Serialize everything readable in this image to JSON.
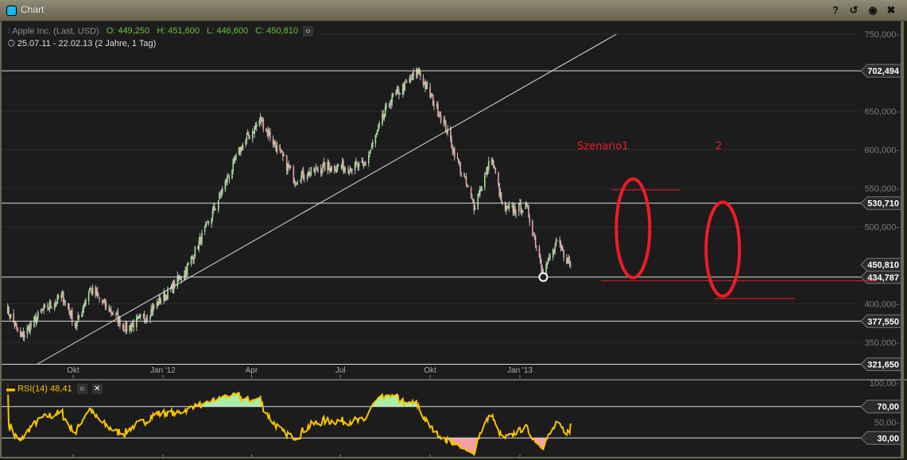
{
  "window": {
    "title": "Chart",
    "buttons": [
      "help-icon",
      "reset-icon",
      "record-icon",
      "close-icon"
    ],
    "glyphs": {
      "help": "?",
      "reset": "↺",
      "record": "◉",
      "close": "✖"
    }
  },
  "legend": {
    "instrument": "Apple Inc. (Last, USD)",
    "open": "O: 449,250",
    "high": "H: 451,600",
    "low": "L: 446,600",
    "close": "C: 450,810",
    "range": "25.07.11 - 22.02.13 (2 Jahre, 1 Tag)"
  },
  "rsi_legend": {
    "label": "RSI(14)",
    "value": "48,41"
  },
  "annotations": {
    "scenario1": "Szenario1",
    "scenario2": "2"
  },
  "colors": {
    "background": "#1c1c1c",
    "up": "#9be38a",
    "down": "#f0a0a0",
    "rsi": "#f5c400",
    "annotation": "#ee1c25",
    "overbought_fill": "#a8f0a8",
    "oversold_fill": "#f5a0a0"
  },
  "chart_data": [
    {
      "type": "candlestick",
      "xlabel": "",
      "ylabel": "",
      "x_ticks": [
        {
          "date": "2011-10-01",
          "label": "Okt"
        },
        {
          "date": "2012-01-01",
          "label": "Jan '12"
        },
        {
          "date": "2012-04-01",
          "label": "Apr"
        },
        {
          "date": "2012-07-01",
          "label": "Jul"
        },
        {
          "date": "2012-10-01",
          "label": "Okt"
        },
        {
          "date": "2013-01-01",
          "label": "Jan '13"
        }
      ],
      "y_ticks": [
        "750,000",
        "650,000",
        "600,000",
        "550,000",
        "500,000",
        "400,000",
        "350,000"
      ],
      "y_tick_values": [
        750,
        650,
        600,
        550,
        500,
        400,
        350
      ],
      "ylim": [
        320,
        760
      ],
      "price_path": [
        [
          "2011-07-25",
          395
        ],
        [
          "2011-08-08",
          355
        ],
        [
          "2011-08-30",
          390
        ],
        [
          "2011-09-20",
          410
        ],
        [
          "2011-10-04",
          372
        ],
        [
          "2011-10-18",
          420
        ],
        [
          "2011-11-25",
          368
        ],
        [
          "2011-12-15",
          385
        ],
        [
          "2012-01-10",
          420
        ],
        [
          "2012-01-25",
          445
        ],
        [
          "2012-02-15",
          500
        ],
        [
          "2012-03-01",
          545
        ],
        [
          "2012-03-20",
          600
        ],
        [
          "2012-04-10",
          640
        ],
        [
          "2012-05-15",
          562
        ],
        [
          "2012-06-15",
          578
        ],
        [
          "2012-07-25",
          578
        ],
        [
          "2012-08-20",
          662
        ],
        [
          "2012-09-19",
          702
        ],
        [
          "2012-10-15",
          635
        ],
        [
          "2012-11-15",
          527
        ],
        [
          "2012-12-03",
          590
        ],
        [
          "2012-12-15",
          522
        ],
        [
          "2013-01-08",
          525
        ],
        [
          "2013-01-25",
          442
        ],
        [
          "2013-02-08",
          478
        ],
        [
          "2013-02-22",
          450.81
        ]
      ],
      "horizontal_lines": [
        {
          "value": 702.494,
          "label": "702,494"
        },
        {
          "value": 530.71,
          "label": "530,710"
        },
        {
          "value": 434.787,
          "label": "434,787"
        },
        {
          "value": 377.55,
          "label": "377,550"
        },
        {
          "value": 321.65,
          "label": "321,650"
        }
      ],
      "last_price": {
        "value": 450.81,
        "label": "450,810"
      },
      "trendline": [
        [
          "2011-08-25",
          321.65
        ],
        [
          "2013-04-10",
          750
        ]
      ],
      "low_marker": [
        "2013-01-25",
        434.787
      ],
      "scenario_lines": [
        {
          "from": "2013-04-05",
          "to": "2013-06-15",
          "value": 548
        },
        {
          "from": "2013-03-25",
          "to": "2014-01-01",
          "value": 430
        },
        {
          "from": "2013-07-20",
          "to": "2013-10-10",
          "value": 407
        }
      ],
      "scenario_ellipses": [
        {
          "center_date": "2013-04-27",
          "from": 434,
          "to": 562
        },
        {
          "center_date": "2013-07-28",
          "from": 410,
          "to": 532
        }
      ]
    },
    {
      "type": "line",
      "name": "RSI(14)",
      "ylim": [
        0,
        100
      ],
      "y_ticks": [
        "100,00",
        "50,00"
      ],
      "y_tick_values": [
        100,
        50
      ],
      "levels": [
        {
          "value": 70,
          "label": "70,00"
        },
        {
          "value": 30,
          "label": "30,00"
        }
      ],
      "last_value": 48.41
    }
  ]
}
